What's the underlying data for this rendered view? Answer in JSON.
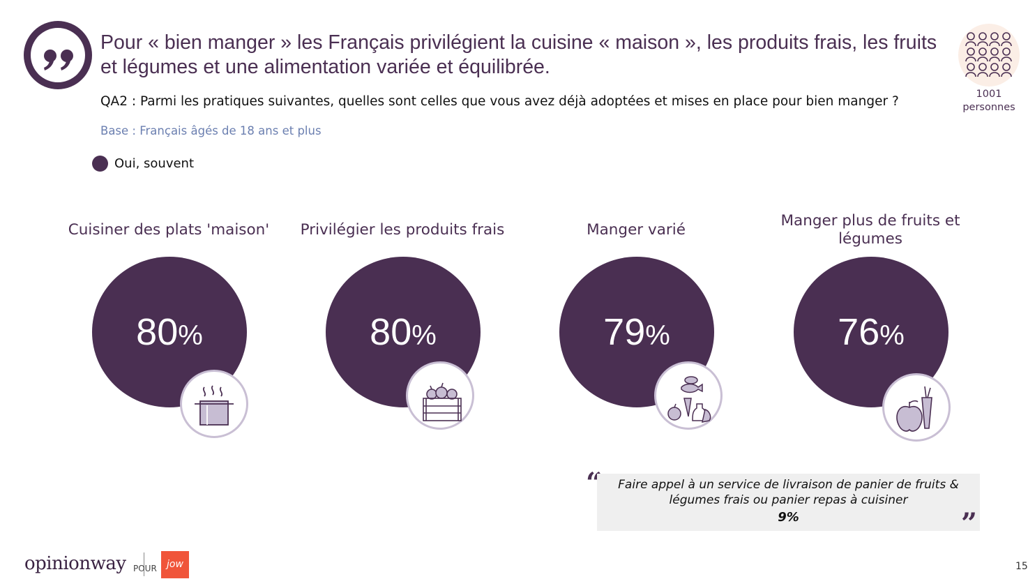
{
  "header": {
    "title": "Pour « bien manger » les Français privilégient la cuisine « maison », les produits frais, les fruits et légumes et une alimentation variée et équilibrée.",
    "question": "QA2 :  Parmi les pratiques suivantes, quelles sont celles que vous avez déjà adoptées et mises en place pour bien manger ?",
    "base": "Base : Français âgés de 18 ans et plus"
  },
  "sample": {
    "count": "1001",
    "unit": "personnes"
  },
  "colors": {
    "primary": "#4a2f52",
    "accent_light": "#fbeee6",
    "base_text": "#6b7fb0",
    "jow": "#f0553a"
  },
  "chart_data": {
    "type": "bar",
    "categories": [
      "Cuisiner des plats 'maison'",
      "Privilégier les produits frais",
      "Manger varié",
      "Manger plus de fruits et légumes"
    ],
    "series": [
      {
        "name": "Oui, souvent",
        "values": [
          80,
          80,
          79,
          76
        ]
      }
    ],
    "unit": "%",
    "legend": "top-left"
  },
  "items": [
    {
      "label": "Cuisiner des plats 'maison'",
      "value": "80",
      "unit": "%",
      "icon": "cooking-pot-icon"
    },
    {
      "label": "Privilégier les produits frais",
      "value": "80",
      "unit": "%",
      "icon": "produce-crate-icon"
    },
    {
      "label": "Manger varié",
      "value": "79",
      "unit": "%",
      "icon": "mixed-foods-icon"
    },
    {
      "label": "Manger plus de fruits et légumes",
      "value": "76",
      "unit": "%",
      "icon": "apple-carrot-icon"
    }
  ],
  "callout": {
    "text": "Faire appel à un service de livraison de panier de fruits & légumes frais ou panier repas à cuisiner",
    "value": "9%"
  },
  "footer": {
    "brand": "opinionway",
    "pour": "POUR",
    "client": "jow",
    "page": "15"
  }
}
